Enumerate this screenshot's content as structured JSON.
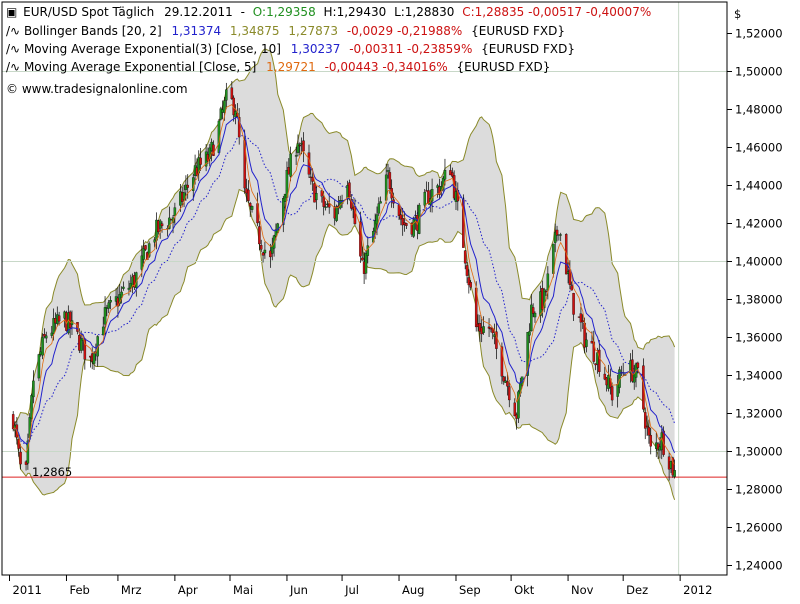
{
  "header": {
    "line1": {
      "instrument": "EUR/USD Spot Täglich",
      "date": "29.12.2011",
      "open_label": "O:1,29358",
      "high_label": "H:1,29430",
      "low_label": "L:1,28830",
      "close_label": "C:1,28835 -0,00517 -0,40007%"
    },
    "line2": {
      "name": "Bollinger Bands [20, 2]",
      "mid": "1,31374",
      "upper": "1,34875",
      "lower": "1,27873",
      "change": "-0,0029 -0,21988%",
      "symbol": "{EURUSD FXD}"
    },
    "line3": {
      "name": "Moving Average Exponential(3) [Close, 10]",
      "value": "1,30237",
      "change": "-0,00311 -0,23859%",
      "symbol": "{EURUSD FXD}"
    },
    "line4": {
      "name": "Moving Average Exponential [Close, 5]",
      "value": "1,29721",
      "change": "-0,00443 -0,34016%",
      "symbol": "{EURUSD FXD}"
    },
    "copyright": "© www.tradesignalonline.com"
  },
  "colors": {
    "up_candle": "#1f8f1f",
    "down_candle": "#cc1111",
    "band_fill": "#dcdcdc",
    "band_line": "#8a8a2a",
    "ema10": "#2222cc",
    "ema5": "#e06a10",
    "last_line": "#dd2222"
  },
  "chart_data": {
    "type": "candlestick",
    "currency_label": "$",
    "ylim": [
      1.235,
      1.535
    ],
    "y_ticks": [
      "1,24000",
      "1,26000",
      "1,28000",
      "1,30000",
      "1,32000",
      "1,34000",
      "1,36000",
      "1,38000",
      "1,40000",
      "1,42000",
      "1,44000",
      "1,46000",
      "1,48000",
      "1,50000",
      "1,52000"
    ],
    "y_tick_values": [
      1.24,
      1.26,
      1.28,
      1.3,
      1.32,
      1.34,
      1.36,
      1.38,
      1.4,
      1.42,
      1.44,
      1.46,
      1.48,
      1.5,
      1.52
    ],
    "x_start": "2010-12-29",
    "x_end": "2012-01-08",
    "x_ticks": [
      {
        "label": "2011",
        "date": "2011-01-01"
      },
      {
        "label": "Feb",
        "date": "2011-02-01"
      },
      {
        "label": "Mrz",
        "date": "2011-03-01"
      },
      {
        "label": "Apr",
        "date": "2011-04-01"
      },
      {
        "label": "Mai",
        "date": "2011-05-01"
      },
      {
        "label": "Jun",
        "date": "2011-06-01"
      },
      {
        "label": "Jul",
        "date": "2011-07-01"
      },
      {
        "label": "Aug",
        "date": "2011-08-01"
      },
      {
        "label": "Sep",
        "date": "2011-09-01"
      },
      {
        "label": "Okt",
        "date": "2011-10-01"
      },
      {
        "label": "Nov",
        "date": "2011-11-01"
      },
      {
        "label": "Dez",
        "date": "2011-12-01"
      },
      {
        "label": "2012",
        "date": "2012-01-01"
      }
    ],
    "h_gridlines": [
      1.3,
      1.4,
      1.5
    ],
    "v_gridline_date": "2011-12-29",
    "last_level": 1.2865,
    "last_level_label": "1,2865",
    "close_series": [
      {
        "date": "2010-12-31",
        "close": 1.338
      },
      {
        "date": "2011-01-07",
        "close": 1.291
      },
      {
        "date": "2011-01-10",
        "close": 1.288
      },
      {
        "date": "2011-01-14",
        "close": 1.338
      },
      {
        "date": "2011-01-21",
        "close": 1.362
      },
      {
        "date": "2011-01-31",
        "close": 1.37
      },
      {
        "date": "2011-02-07",
        "close": 1.36
      },
      {
        "date": "2011-02-14",
        "close": 1.348
      },
      {
        "date": "2011-02-21",
        "close": 1.37
      },
      {
        "date": "2011-03-01",
        "close": 1.38
      },
      {
        "date": "2011-03-10",
        "close": 1.39
      },
      {
        "date": "2011-03-21",
        "close": 1.415
      },
      {
        "date": "2011-04-01",
        "close": 1.425
      },
      {
        "date": "2011-04-12",
        "close": 1.448
      },
      {
        "date": "2011-04-20",
        "close": 1.455
      },
      {
        "date": "2011-04-29",
        "close": 1.485
      },
      {
        "date": "2011-05-04",
        "close": 1.482
      },
      {
        "date": "2011-05-09",
        "close": 1.435
      },
      {
        "date": "2011-05-16",
        "close": 1.415
      },
      {
        "date": "2011-05-23",
        "close": 1.4
      },
      {
        "date": "2011-05-31",
        "close": 1.44
      },
      {
        "date": "2011-06-07",
        "close": 1.465
      },
      {
        "date": "2011-06-14",
        "close": 1.44
      },
      {
        "date": "2011-06-20",
        "close": 1.43
      },
      {
        "date": "2011-06-27",
        "close": 1.425
      },
      {
        "date": "2011-07-04",
        "close": 1.445
      },
      {
        "date": "2011-07-12",
        "close": 1.395
      },
      {
        "date": "2011-07-18",
        "close": 1.415
      },
      {
        "date": "2011-07-26",
        "close": 1.445
      },
      {
        "date": "2011-08-03",
        "close": 1.42
      },
      {
        "date": "2011-08-10",
        "close": 1.42
      },
      {
        "date": "2011-08-17",
        "close": 1.435
      },
      {
        "date": "2011-08-24",
        "close": 1.44
      },
      {
        "date": "2011-08-29",
        "close": 1.45
      },
      {
        "date": "2011-09-05",
        "close": 1.41
      },
      {
        "date": "2011-09-12",
        "close": 1.365
      },
      {
        "date": "2011-09-19",
        "close": 1.365
      },
      {
        "date": "2011-09-26",
        "close": 1.345
      },
      {
        "date": "2011-10-04",
        "close": 1.32
      },
      {
        "date": "2011-10-12",
        "close": 1.375
      },
      {
        "date": "2011-10-19",
        "close": 1.38
      },
      {
        "date": "2011-10-27",
        "close": 1.42
      },
      {
        "date": "2011-11-03",
        "close": 1.38
      },
      {
        "date": "2011-11-10",
        "close": 1.36
      },
      {
        "date": "2011-11-17",
        "close": 1.35
      },
      {
        "date": "2011-11-25",
        "close": 1.33
      },
      {
        "date": "2011-12-02",
        "close": 1.345
      },
      {
        "date": "2011-12-09",
        "close": 1.34
      },
      {
        "date": "2011-12-16",
        "close": 1.3
      },
      {
        "date": "2011-12-22",
        "close": 1.307
      },
      {
        "date": "2011-12-29",
        "close": 1.2884
      }
    ]
  }
}
